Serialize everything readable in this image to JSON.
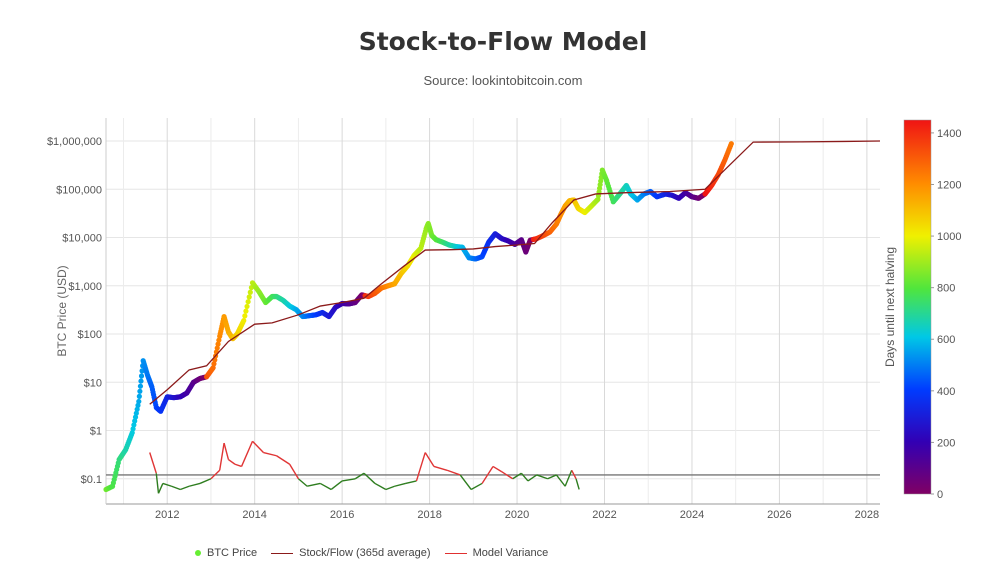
{
  "chart_data": {
    "type": "scatter",
    "title": "Stock-to-Flow Model",
    "subtitle": "Source: lookintobitcoin.com",
    "ylabel": "BTC Price (USD)",
    "y_scale": "log",
    "ylim": [
      0.03,
      3000000
    ],
    "xlim": [
      2010.6,
      2028.3
    ],
    "x_ticks": [
      "2012",
      "2014",
      "2016",
      "2018",
      "2020",
      "2022",
      "2024",
      "2026",
      "2028"
    ],
    "y_ticks": [
      "$0.1",
      "$1",
      "$10",
      "$100",
      "$1,000",
      "$10,000",
      "$100,000",
      "$1,000,000"
    ],
    "grid": true,
    "legend_position": "bottom",
    "colorbar": {
      "label": "Days until next halving",
      "ticks": [
        "0",
        "200",
        "400",
        "600",
        "800",
        "1000",
        "1200",
        "1400"
      ],
      "range": [
        0,
        1450
      ]
    },
    "reference_line": 0.12,
    "series": [
      {
        "name": "BTC Price",
        "kind": "scatter",
        "points": [
          [
            2010.6,
            0.06
          ],
          [
            2010.75,
            0.07
          ],
          [
            2010.9,
            0.25
          ],
          [
            2011.05,
            0.4
          ],
          [
            2011.2,
            0.9
          ],
          [
            2011.35,
            4
          ],
          [
            2011.45,
            28
          ],
          [
            2011.55,
            14
          ],
          [
            2011.65,
            8
          ],
          [
            2011.75,
            3
          ],
          [
            2011.85,
            2.5
          ],
          [
            2012.0,
            5
          ],
          [
            2012.15,
            4.8
          ],
          [
            2012.3,
            5
          ],
          [
            2012.45,
            6
          ],
          [
            2012.6,
            10
          ],
          [
            2012.75,
            12
          ],
          [
            2012.9,
            13
          ],
          [
            2013.05,
            20
          ],
          [
            2013.2,
            90
          ],
          [
            2013.3,
            230
          ],
          [
            2013.4,
            110
          ],
          [
            2013.5,
            80
          ],
          [
            2013.6,
            100
          ],
          [
            2013.75,
            190
          ],
          [
            2013.95,
            1150
          ],
          [
            2014.1,
            750
          ],
          [
            2014.25,
            450
          ],
          [
            2014.4,
            600
          ],
          [
            2014.5,
            600
          ],
          [
            2014.65,
            500
          ],
          [
            2014.8,
            380
          ],
          [
            2014.95,
            320
          ],
          [
            2015.1,
            230
          ],
          [
            2015.25,
            240
          ],
          [
            2015.4,
            250
          ],
          [
            2015.55,
            280
          ],
          [
            2015.7,
            230
          ],
          [
            2015.85,
            360
          ],
          [
            2016.0,
            430
          ],
          [
            2016.15,
            420
          ],
          [
            2016.3,
            450
          ],
          [
            2016.45,
            650
          ],
          [
            2016.6,
            600
          ],
          [
            2016.75,
            700
          ],
          [
            2016.9,
            900
          ],
          [
            2017.05,
            1000
          ],
          [
            2017.2,
            1100
          ],
          [
            2017.35,
            1800
          ],
          [
            2017.5,
            2600
          ],
          [
            2017.65,
            4300
          ],
          [
            2017.8,
            6000
          ],
          [
            2017.92,
            15000
          ],
          [
            2017.97,
            19500
          ],
          [
            2018.05,
            11000
          ],
          [
            2018.15,
            9000
          ],
          [
            2018.3,
            8000
          ],
          [
            2018.45,
            7000
          ],
          [
            2018.6,
            6500
          ],
          [
            2018.75,
            6300
          ],
          [
            2018.9,
            3800
          ],
          [
            2019.05,
            3600
          ],
          [
            2019.2,
            4000
          ],
          [
            2019.35,
            8000
          ],
          [
            2019.5,
            12000
          ],
          [
            2019.65,
            9500
          ],
          [
            2019.8,
            8500
          ],
          [
            2019.95,
            7200
          ],
          [
            2020.1,
            9000
          ],
          [
            2020.2,
            5000
          ],
          [
            2020.3,
            8800
          ],
          [
            2020.45,
            9500
          ],
          [
            2020.6,
            11000
          ],
          [
            2020.75,
            13000
          ],
          [
            2020.9,
            19000
          ],
          [
            2021.0,
            30000
          ],
          [
            2021.1,
            45000
          ],
          [
            2021.2,
            58000
          ],
          [
            2021.3,
            60000
          ],
          [
            2021.4,
            40000
          ],
          [
            2021.55,
            33000
          ],
          [
            2021.7,
            45000
          ],
          [
            2021.85,
            62000
          ],
          [
            2021.95,
            250000
          ],
          [
            2022.05,
            150000
          ],
          [
            2022.2,
            55000
          ],
          [
            2022.35,
            80000
          ],
          [
            2022.5,
            120000
          ],
          [
            2022.6,
            80000
          ],
          [
            2022.75,
            60000
          ],
          [
            2022.9,
            80000
          ],
          [
            2023.05,
            90000
          ],
          [
            2023.2,
            70000
          ],
          [
            2023.4,
            80000
          ],
          [
            2023.55,
            75000
          ],
          [
            2023.7,
            65000
          ],
          [
            2023.85,
            85000
          ],
          [
            2024.0,
            70000
          ],
          [
            2024.15,
            65000
          ],
          [
            2024.3,
            80000
          ],
          [
            2024.45,
            120000
          ],
          [
            2024.6,
            200000
          ],
          [
            2024.75,
            400000
          ],
          [
            2024.9,
            880000
          ]
        ]
      },
      {
        "name": "Stock/Flow (365d average)",
        "color": "#8b1a1a",
        "kind": "line",
        "points": [
          [
            2011.6,
            3.5
          ],
          [
            2012.0,
            7
          ],
          [
            2012.5,
            18
          ],
          [
            2012.9,
            22
          ],
          [
            2013.4,
            70
          ],
          [
            2014.0,
            160
          ],
          [
            2014.4,
            170
          ],
          [
            2015.0,
            250
          ],
          [
            2015.5,
            380
          ],
          [
            2016.0,
            450
          ],
          [
            2016.5,
            550
          ],
          [
            2016.9,
            1100
          ],
          [
            2017.4,
            2500
          ],
          [
            2017.9,
            5500
          ],
          [
            2018.5,
            5600
          ],
          [
            2019.0,
            5800
          ],
          [
            2019.5,
            6500
          ],
          [
            2020.0,
            7000
          ],
          [
            2020.4,
            7500
          ],
          [
            2020.8,
            20000
          ],
          [
            2021.3,
            60000
          ],
          [
            2021.8,
            80000
          ],
          [
            2022.5,
            85000
          ],
          [
            2023.5,
            90000
          ],
          [
            2024.3,
            100000
          ],
          [
            2024.8,
            280000
          ],
          [
            2025.4,
            950000
          ],
          [
            2026.5,
            960000
          ],
          [
            2027.5,
            980000
          ],
          [
            2028.3,
            1000000
          ]
        ]
      },
      {
        "name": "Model Variance",
        "kind": "line",
        "note_colors": "red above reference line, green below",
        "points": [
          [
            2011.6,
            0.35
          ],
          [
            2011.75,
            0.13
          ],
          [
            2011.8,
            0.05
          ],
          [
            2011.9,
            0.08
          ],
          [
            2012.1,
            0.07
          ],
          [
            2012.3,
            0.06
          ],
          [
            2012.5,
            0.07
          ],
          [
            2012.75,
            0.08
          ],
          [
            2013.0,
            0.1
          ],
          [
            2013.2,
            0.15
          ],
          [
            2013.3,
            0.55
          ],
          [
            2013.4,
            0.25
          ],
          [
            2013.55,
            0.2
          ],
          [
            2013.7,
            0.18
          ],
          [
            2013.95,
            0.6
          ],
          [
            2014.2,
            0.35
          ],
          [
            2014.5,
            0.3
          ],
          [
            2014.8,
            0.2
          ],
          [
            2015.0,
            0.1
          ],
          [
            2015.2,
            0.07
          ],
          [
            2015.5,
            0.08
          ],
          [
            2015.75,
            0.06
          ],
          [
            2016.0,
            0.09
          ],
          [
            2016.3,
            0.1
          ],
          [
            2016.5,
            0.13
          ],
          [
            2016.75,
            0.08
          ],
          [
            2017.0,
            0.06
          ],
          [
            2017.2,
            0.07
          ],
          [
            2017.45,
            0.08
          ],
          [
            2017.7,
            0.09
          ],
          [
            2017.9,
            0.35
          ],
          [
            2018.1,
            0.18
          ],
          [
            2018.4,
            0.15
          ],
          [
            2018.7,
            0.12
          ],
          [
            2018.95,
            0.06
          ],
          [
            2019.2,
            0.08
          ],
          [
            2019.45,
            0.18
          ],
          [
            2019.65,
            0.14
          ],
          [
            2019.9,
            0.1
          ],
          [
            2020.1,
            0.13
          ],
          [
            2020.25,
            0.09
          ],
          [
            2020.45,
            0.12
          ],
          [
            2020.7,
            0.1
          ],
          [
            2020.9,
            0.12
          ],
          [
            2021.1,
            0.07
          ],
          [
            2021.25,
            0.15
          ],
          [
            2021.35,
            0.1
          ],
          [
            2021.42,
            0.06
          ]
        ]
      }
    ]
  },
  "legend": {
    "btc": "BTC Price",
    "sf": "Stock/Flow (365d average)",
    "variance": "Model Variance"
  }
}
